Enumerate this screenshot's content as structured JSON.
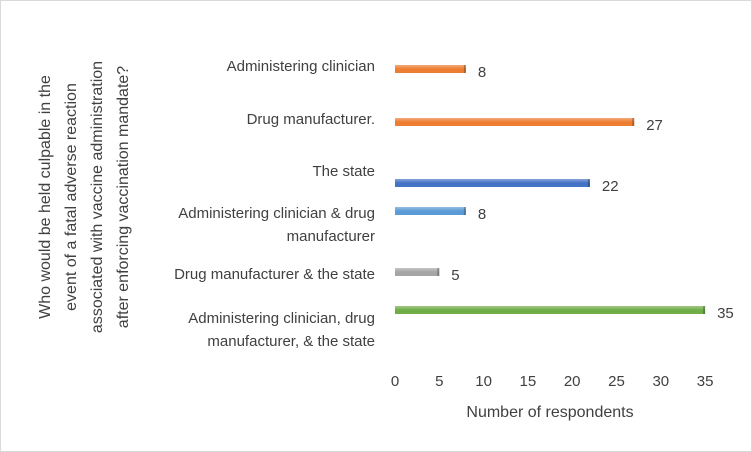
{
  "chart_data": {
    "type": "bar",
    "orientation": "horizontal",
    "categories": [
      [
        "Administering clinician"
      ],
      [
        "Drug manufacturer."
      ],
      [
        "The state"
      ],
      [
        "Administering clinician & drug",
        "manufacturer"
      ],
      [
        "Drug manufacturer & the state"
      ],
      [
        "Administering clinician, drug",
        "manufacturer, & the state"
      ]
    ],
    "values": [
      8,
      27,
      22,
      8,
      5,
      35
    ],
    "bar_colors": [
      "#ED7D31",
      "#ED7D31",
      "#4472C4",
      "#5B9BD5",
      "#A5A5A5",
      "#70AD47"
    ],
    "xlabel": "Number of respondents",
    "ylabel": [
      "Who would be held culpable in the",
      "event  of a fatal adverse reaction",
      "associated with vaccine administration",
      "after enforcing vaccination mandate?"
    ],
    "xlim": [
      0,
      35
    ],
    "xticks": [
      0,
      5,
      10,
      15,
      20,
      25,
      30,
      35
    ],
    "grid": false,
    "legend": "none"
  }
}
